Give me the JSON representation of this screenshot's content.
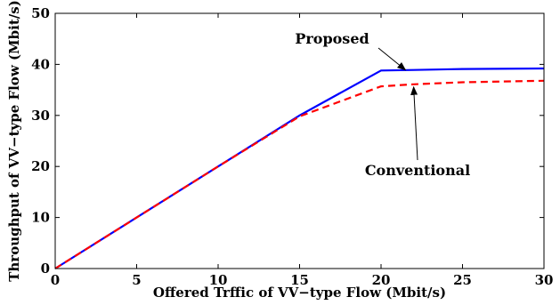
{
  "chart_data": {
    "type": "line",
    "title": "",
    "xlabel": "Offered Trffic of VV−type Flow (Mbit/s)",
    "ylabel": "Throughput of VV−type Flow (Mbit/s)",
    "xlim": [
      0,
      30
    ],
    "ylim": [
      0,
      50
    ],
    "xticks": [
      0,
      5,
      10,
      15,
      20,
      25,
      30
    ],
    "yticks": [
      0,
      10,
      20,
      30,
      40,
      50
    ],
    "xtick_labels": [
      "0",
      "5",
      "10",
      "15",
      "20",
      "25",
      "30"
    ],
    "ytick_labels": [
      "0",
      "10",
      "20",
      "30",
      "40",
      "50"
    ],
    "grid": false,
    "legend": "none",
    "series": [
      {
        "name": "Proposed",
        "color": "#0000ff",
        "style": "solid",
        "x": [
          0,
          5,
          10,
          15,
          20,
          22,
          25,
          30
        ],
        "y": [
          0,
          10,
          20,
          30,
          38.8,
          38.9,
          39.1,
          39.2
        ]
      },
      {
        "name": "Conventional",
        "color": "#ff0000",
        "style": "dashed",
        "x": [
          0,
          5,
          10,
          15,
          20,
          22,
          25,
          30
        ],
        "y": [
          0,
          10,
          20,
          29.8,
          35.7,
          36.1,
          36.5,
          36.8
        ]
      }
    ],
    "annotations": [
      {
        "text": "Proposed",
        "arrow_to": [
          21.5,
          38.9
        ]
      },
      {
        "text": "Conventional",
        "arrow_to": [
          22,
          36.1
        ]
      }
    ]
  }
}
